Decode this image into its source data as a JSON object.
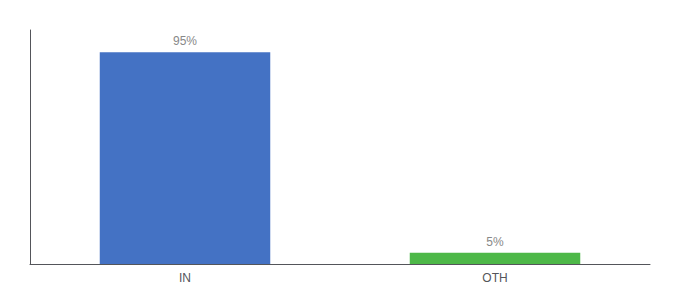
{
  "chart_data": {
    "type": "bar",
    "categories": [
      "IN",
      "OTH"
    ],
    "values": [
      95,
      5
    ],
    "value_labels": [
      "95%",
      "5%"
    ],
    "data_labels": true,
    "colors": [
      "#4472c4",
      "#4db848"
    ],
    "ylim": [
      0,
      105
    ],
    "tick_labels": "x",
    "grid": false
  }
}
